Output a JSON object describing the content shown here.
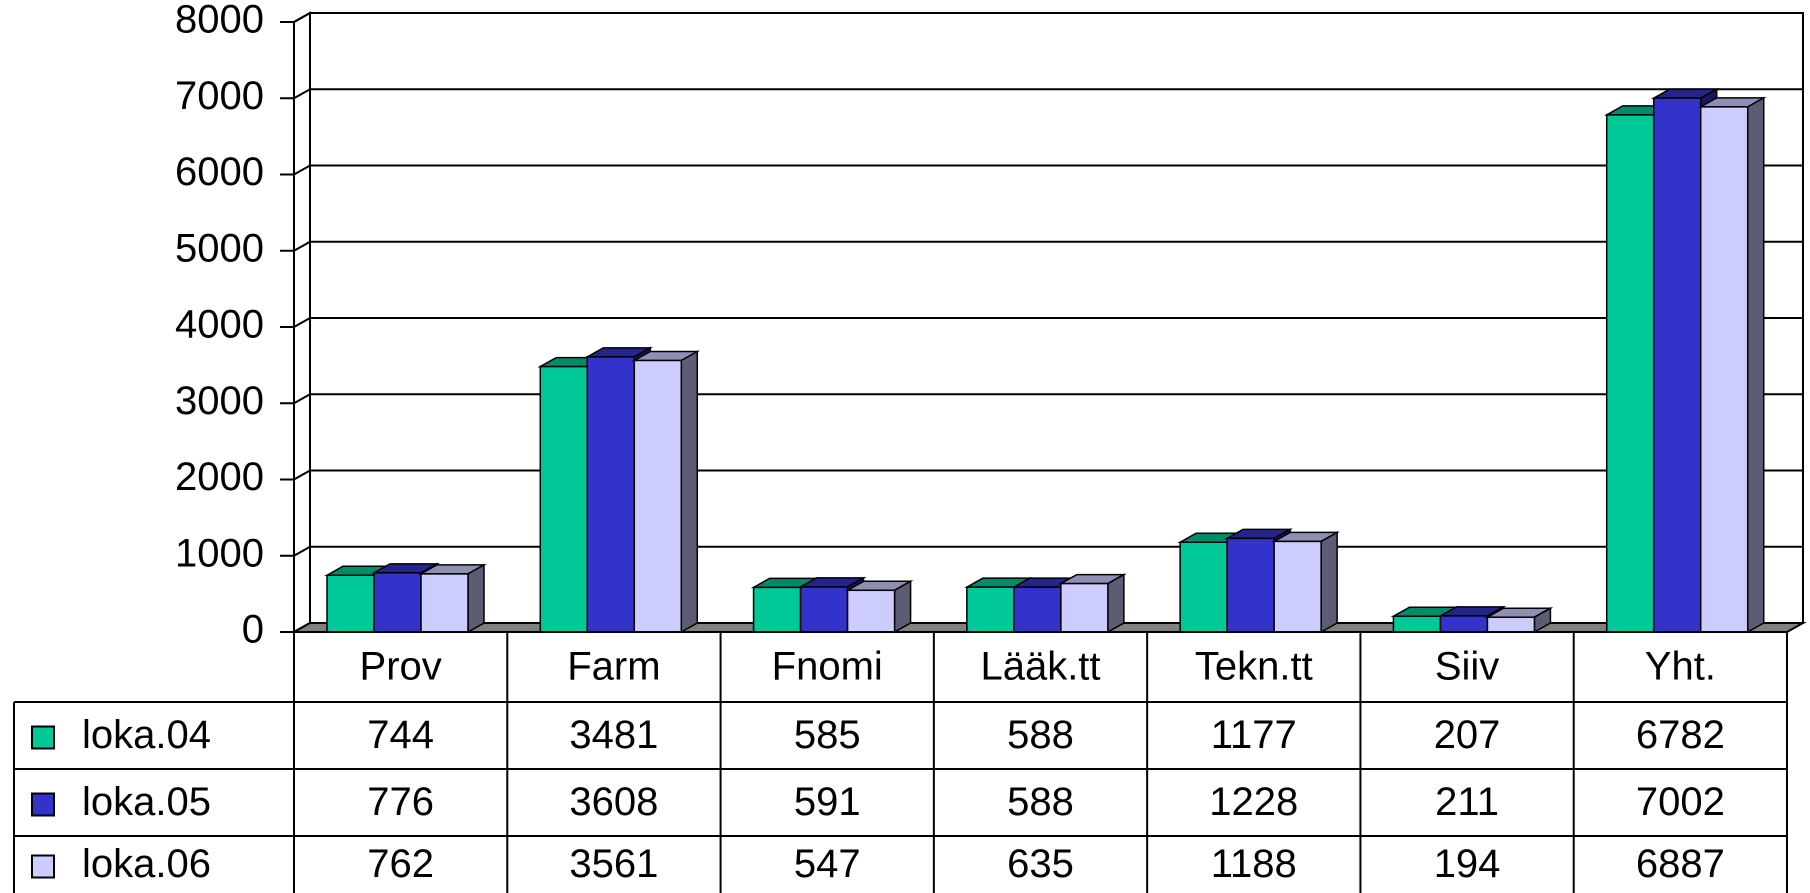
{
  "chart_data": {
    "type": "bar3d",
    "categories": [
      "Prov",
      "Farm",
      "Fnomi",
      "Lääk.tt",
      "Tekn.tt",
      "Siiv",
      "Yht."
    ],
    "series": [
      {
        "name": "loka.04",
        "color": "#00c896",
        "values": [
          744,
          3481,
          585,
          588,
          1177,
          207,
          6782
        ]
      },
      {
        "name": "loka.05",
        "color": "#3333cc",
        "values": [
          776,
          3608,
          591,
          588,
          1228,
          211,
          7002
        ]
      },
      {
        "name": "loka.06",
        "color": "#ccccff",
        "values": [
          762,
          3561,
          547,
          635,
          1188,
          194,
          6887
        ]
      }
    ],
    "ylim": [
      0,
      8000
    ],
    "yticks": [
      0,
      1000,
      2000,
      3000,
      4000,
      5000,
      6000,
      7000,
      8000
    ],
    "grid": true
  }
}
